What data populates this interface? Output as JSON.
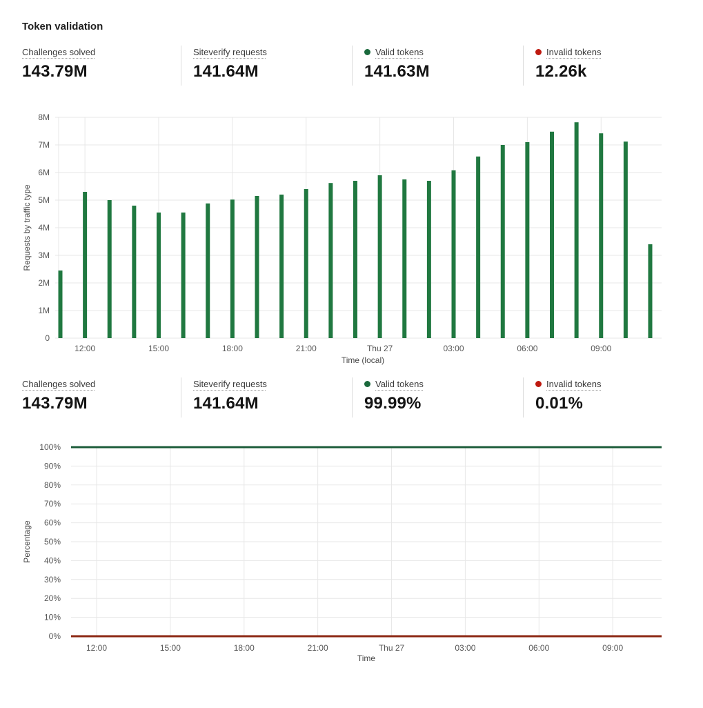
{
  "page_title": "Token validation",
  "colors": {
    "bar_green": "#207840",
    "line_green": "#1c5c3a",
    "dot_green": "#1a693c",
    "dot_red": "#be190f",
    "line_red": "#8c2814",
    "grid": "#e7e7e7",
    "divider": "#dcdcdc"
  },
  "stats_top": [
    {
      "label": "Challenges solved",
      "value": "143.79M",
      "dot": "none"
    },
    {
      "label": "Siteverify requests",
      "value": "141.64M",
      "dot": "none"
    },
    {
      "label": "Valid tokens",
      "value": "141.63M",
      "dot": "green"
    },
    {
      "label": "Invalid tokens",
      "value": "12.26k",
      "dot": "red"
    }
  ],
  "stats_bottom": [
    {
      "label": "Challenges solved",
      "value": "143.79M",
      "dot": "none"
    },
    {
      "label": "Siteverify requests",
      "value": "141.64M",
      "dot": "none"
    },
    {
      "label": "Valid tokens",
      "value": "99.99%",
      "dot": "green"
    },
    {
      "label": "Invalid tokens",
      "value": "0.01%",
      "dot": "red"
    }
  ],
  "chart_data": [
    {
      "type": "bar",
      "title": "",
      "ylabel": "Requests by traffic type",
      "xlabel": "Time (local)",
      "unit": "M requests",
      "ylim": [
        0,
        8
      ],
      "ytick_labels": [
        "0",
        "1M",
        "2M",
        "3M",
        "4M",
        "5M",
        "6M",
        "7M",
        "8M"
      ],
      "categories": [
        "11:00",
        "12:00",
        "13:00",
        "14:00",
        "15:00",
        "16:00",
        "17:00",
        "18:00",
        "19:00",
        "20:00",
        "21:00",
        "22:00",
        "23:00",
        "Thu 27",
        "01:00",
        "02:00",
        "03:00",
        "04:00",
        "05:00",
        "06:00",
        "07:00",
        "08:00",
        "09:00",
        "10:00",
        "11:00"
      ],
      "xtick_indices": [
        1,
        4,
        7,
        10,
        13,
        16,
        19,
        22
      ],
      "xtick_labels": [
        "12:00",
        "15:00",
        "18:00",
        "21:00",
        "Thu 27",
        "03:00",
        "06:00",
        "09:00"
      ],
      "series_name": "Valid tokens",
      "values": [
        2.45,
        5.3,
        5.0,
        4.8,
        4.55,
        4.55,
        4.88,
        5.02,
        5.15,
        5.2,
        5.4,
        5.62,
        5.7,
        5.9,
        5.75,
        5.7,
        6.08,
        6.58,
        7.0,
        7.1,
        7.48,
        7.82,
        7.42,
        7.12,
        3.4
      ],
      "grid": "on",
      "legend_position": "none"
    },
    {
      "type": "line",
      "title": "",
      "ylabel": "Percentage",
      "xlabel": "Time",
      "ylim": [
        0,
        100
      ],
      "ytick_labels": [
        "0%",
        "10%",
        "20%",
        "30%",
        "40%",
        "50%",
        "60%",
        "70%",
        "80%",
        "90%",
        "100%"
      ],
      "categories": [
        "11:00",
        "12:00",
        "13:00",
        "14:00",
        "15:00",
        "16:00",
        "17:00",
        "18:00",
        "19:00",
        "20:00",
        "21:00",
        "22:00",
        "23:00",
        "Thu 27",
        "01:00",
        "02:00",
        "03:00",
        "04:00",
        "05:00",
        "06:00",
        "07:00",
        "08:00",
        "09:00",
        "10:00",
        "11:00"
      ],
      "xtick_indices": [
        1,
        4,
        7,
        10,
        13,
        16,
        19,
        22
      ],
      "xtick_labels": [
        "12:00",
        "15:00",
        "18:00",
        "21:00",
        "Thu 27",
        "03:00",
        "06:00",
        "09:00"
      ],
      "series": [
        {
          "name": "Valid tokens",
          "constant_value": 99.99,
          "color_key": "line_green"
        },
        {
          "name": "Invalid tokens",
          "constant_value": 0.01,
          "color_key": "line_red"
        }
      ],
      "grid": "on",
      "legend_position": "none"
    }
  ]
}
